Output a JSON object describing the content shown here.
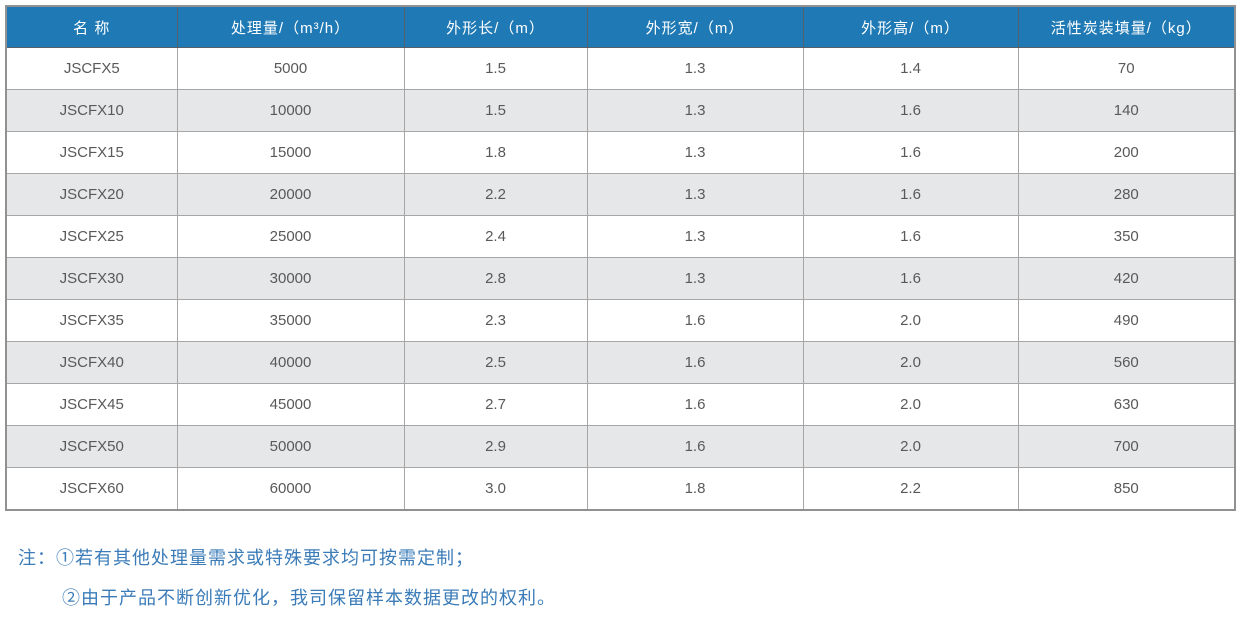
{
  "table": {
    "headers": [
      "名 称",
      "处理量/（m³/h）",
      "外形长/（m）",
      "外形宽/（m）",
      "外形高/（m）",
      "活性炭装填量/（kg）"
    ],
    "rows": [
      [
        "JSCFX5",
        "5000",
        "1.5",
        "1.3",
        "1.4",
        "70"
      ],
      [
        "JSCFX10",
        "10000",
        "1.5",
        "1.3",
        "1.6",
        "140"
      ],
      [
        "JSCFX15",
        "15000",
        "1.8",
        "1.3",
        "1.6",
        "200"
      ],
      [
        "JSCFX20",
        "20000",
        "2.2",
        "1.3",
        "1.6",
        "280"
      ],
      [
        "JSCFX25",
        "25000",
        "2.4",
        "1.3",
        "1.6",
        "350"
      ],
      [
        "JSCFX30",
        "30000",
        "2.8",
        "1.3",
        "1.6",
        "420"
      ],
      [
        "JSCFX35",
        "35000",
        "2.3",
        "1.6",
        "2.0",
        "490"
      ],
      [
        "JSCFX40",
        "40000",
        "2.5",
        "1.6",
        "2.0",
        "560"
      ],
      [
        "JSCFX45",
        "45000",
        "2.7",
        "1.6",
        "2.0",
        "630"
      ],
      [
        "JSCFX50",
        "50000",
        "2.9",
        "1.6",
        "2.0",
        "700"
      ],
      [
        "JSCFX60",
        "60000",
        "3.0",
        "1.8",
        "2.2",
        "850"
      ]
    ]
  },
  "notes": {
    "prefix": "注：",
    "items": [
      "①若有其他处理量需求或特殊要求均可按需定制；",
      "②由于产品不断创新优化，我司保留样本数据更改的权利。"
    ]
  },
  "colors": {
    "header_bg": "#1e79b5",
    "header_text": "#ffffff",
    "row_stripe": "#e6e7e8",
    "grid_border": "#a6a6a6",
    "outer_border": "#919191",
    "cell_text": "#595959",
    "note_text": "#3b7cb8"
  }
}
